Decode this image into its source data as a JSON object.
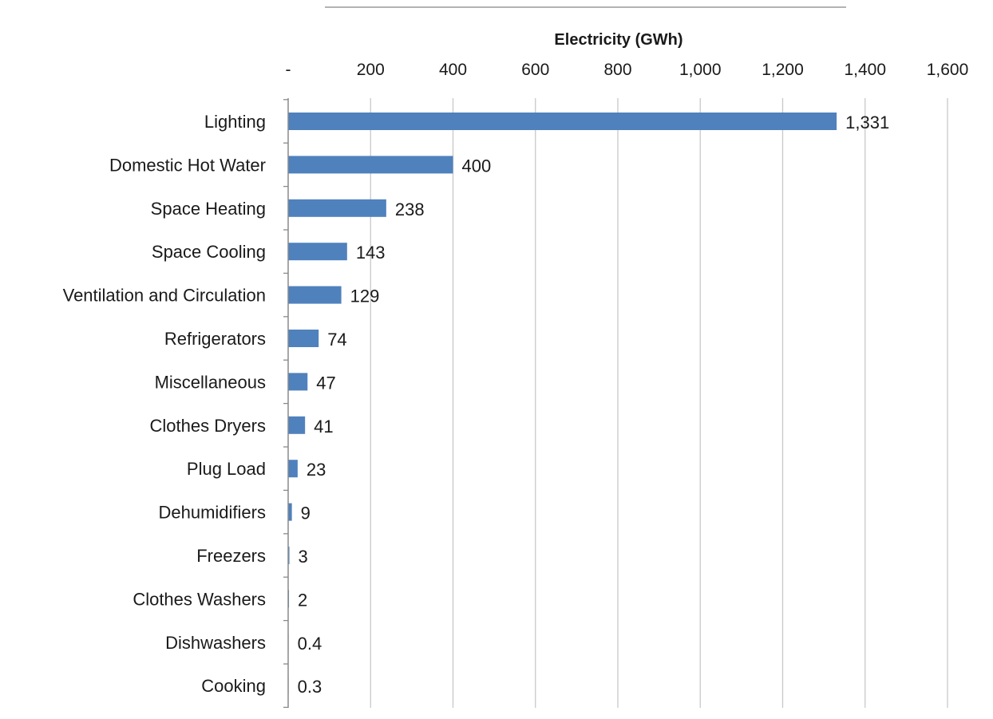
{
  "chart_data": {
    "type": "bar",
    "orientation": "horizontal",
    "title": "",
    "xlabel": "Electricity (GWh)",
    "xlabel_position": "top",
    "ylabel": "",
    "xlim": [
      0,
      1600
    ],
    "x_tick_values": [
      0,
      200,
      400,
      600,
      800,
      1000,
      1200,
      1400,
      1600
    ],
    "x_tick_labels": [
      "-",
      "200",
      "400",
      "600",
      "800",
      "1,000",
      "1,200",
      "1,400",
      "1,600"
    ],
    "grid": true,
    "legend": false,
    "bar_color": "#4f81bd",
    "categories": [
      "Lighting",
      "Domestic Hot Water",
      "Space Heating",
      "Space Cooling",
      "Ventilation and Circulation",
      "Refrigerators",
      "Miscellaneous",
      "Clothes Dryers",
      "Plug Load",
      "Dehumidifiers",
      "Freezers",
      "Clothes Washers",
      "Dishwashers",
      "Cooking"
    ],
    "values": [
      1331,
      400,
      238,
      143,
      129,
      74,
      47,
      41,
      23,
      9,
      3,
      2,
      0.4,
      0.3
    ],
    "value_labels": [
      "1,331",
      "400",
      "238",
      "143",
      "129",
      "74",
      "47",
      "41",
      "23",
      "9",
      "3",
      "2",
      "0.4",
      "0.3"
    ]
  }
}
